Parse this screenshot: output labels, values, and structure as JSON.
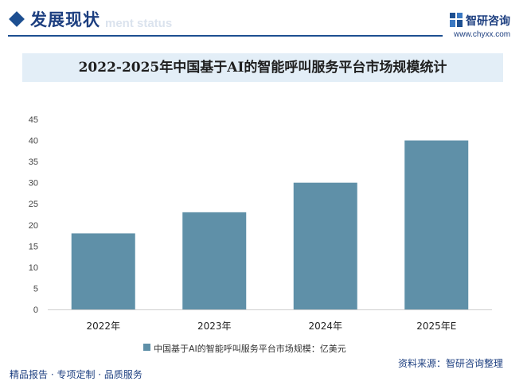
{
  "header": {
    "section_title": "发展现状",
    "section_subtitle": "ment status",
    "logo_text": "智研咨询",
    "site_url": "www.chyxx.com"
  },
  "chart_data": {
    "type": "bar",
    "title": "2022-2025年中国基于AI的智能呼叫服务平台市场规模统计",
    "categories": [
      "2022年",
      "2023年",
      "2024年",
      "2025年E"
    ],
    "series": [
      {
        "name": "中国基于AI的智能呼叫服务平台市场规模：亿美元",
        "values": [
          18,
          23,
          30,
          40
        ]
      }
    ],
    "ylim": [
      0,
      45
    ],
    "yticks": [
      0,
      5,
      10,
      15,
      20,
      25,
      30,
      35,
      40,
      45
    ],
    "color": "#5f90a8",
    "legend": "bottom",
    "grid": false
  },
  "footer": {
    "left": "精品报告 · 专项定制 · 品质服务",
    "source": "资料来源：智研咨询整理"
  }
}
